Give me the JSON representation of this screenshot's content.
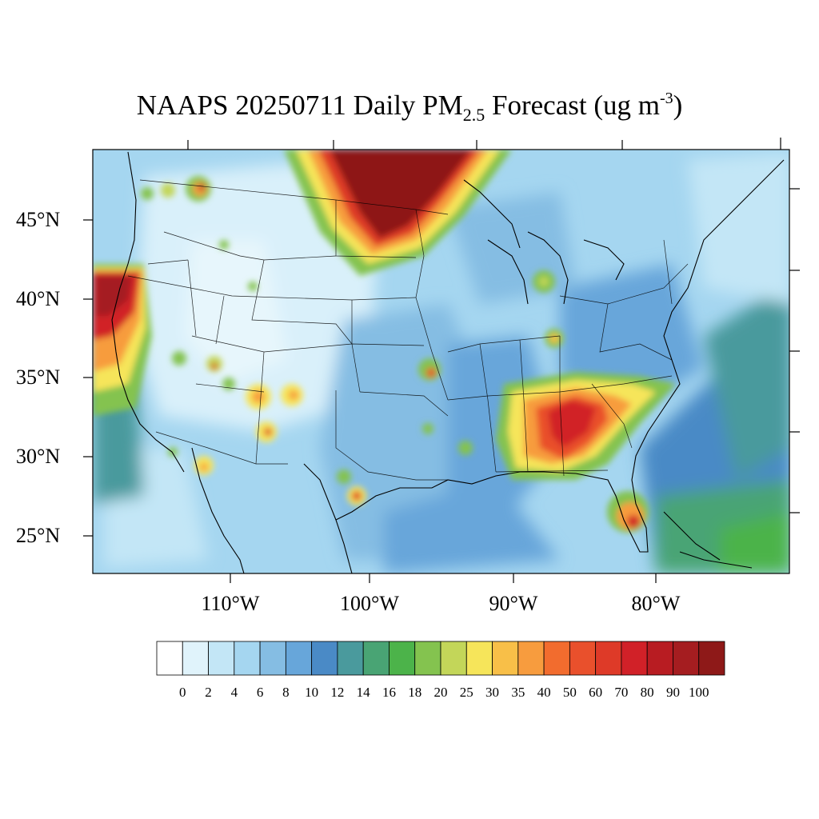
{
  "map": {
    "title_main": "NAAPS 20250711 Daily PM",
    "title_sub": "2.5",
    "title_rest": " Forecast (ug m",
    "title_sup": "-3",
    "title_end": ")",
    "variable": "Daily PM2.5 Forecast",
    "units": "ug m-3",
    "lat_labels": [
      "45°N",
      "40°N",
      "35°N",
      "30°N",
      "25°N"
    ],
    "lon_labels": [
      "110°W",
      "100°W",
      "90°W",
      "80°W"
    ]
  },
  "colorbar": {
    "labels": [
      "0",
      "2",
      "4",
      "6",
      "8",
      "10",
      "12",
      "14",
      "16",
      "18",
      "20",
      "25",
      "30",
      "35",
      "40",
      "50",
      "60",
      "70",
      "80",
      "90",
      "100"
    ],
    "colors": [
      "#ffffff",
      "#e0f3fb",
      "#c3e6f6",
      "#a5d6f0",
      "#85bde3",
      "#67a6da",
      "#4a8ac6",
      "#4a9a9d",
      "#49a474",
      "#4cb34a",
      "#84c34f",
      "#c3d659",
      "#f6e55a",
      "#f8bf48",
      "#f79c3e",
      "#f26c2e",
      "#e9502c",
      "#de3a28",
      "#d12128",
      "#b81c22",
      "#a51d20",
      "#8e1918"
    ]
  }
}
